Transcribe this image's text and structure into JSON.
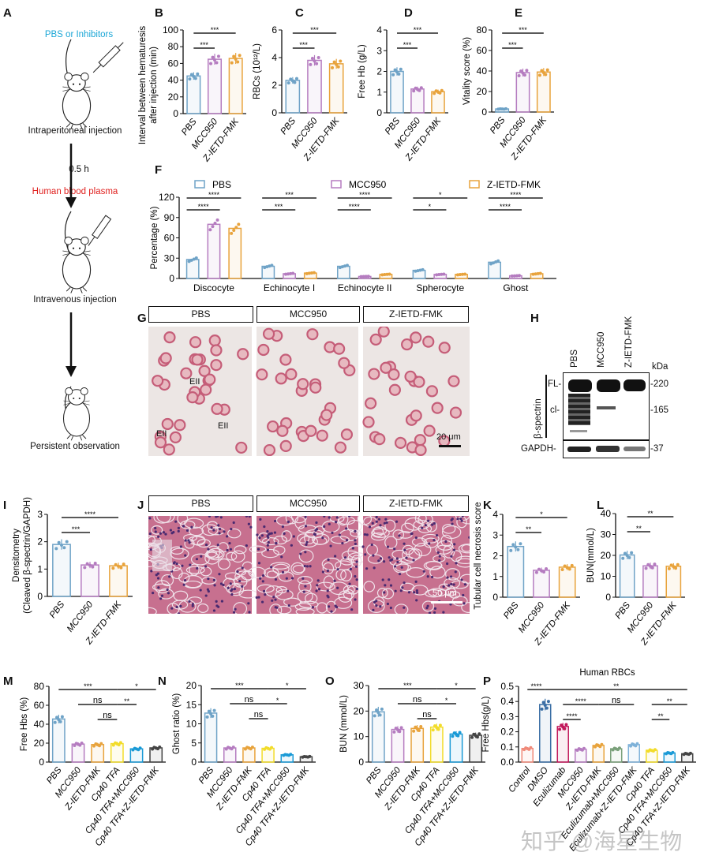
{
  "panel_letters": {
    "A": "A",
    "B": "B",
    "C": "C",
    "D": "D",
    "E": "E",
    "F": "F",
    "G": "G",
    "H": "H",
    "I": "I",
    "J": "J",
    "K": "K",
    "L": "L",
    "M": "M",
    "N": "N",
    "O": "O",
    "P": "P"
  },
  "schematic": {
    "step1_label": "PBS or Inhibitors",
    "step1_caption": "Intraperitoneal injection",
    "interval": "0.5 h",
    "step2_label": "Human blood plasma",
    "step2_caption": "Intravenous injection",
    "step3_caption": "Persistent observation",
    "colors": {
      "step1": "#1aa6d6",
      "step2": "#e0201e"
    }
  },
  "smear_panel": {
    "headers": [
      "PBS",
      "MCC950",
      "Z-IETD-FMK"
    ],
    "annotations": [
      "EII",
      "EII",
      "EII"
    ],
    "scale_bar": "20 μm"
  },
  "kidney_panel": {
    "headers": [
      "PBS",
      "MCC950",
      "Z-IETD-FMK"
    ],
    "scale_bar": "50 μm"
  },
  "western_blot": {
    "lanes": [
      "PBS",
      "MCC950",
      "Z-IETD-FMK"
    ],
    "unit": "kDa",
    "markers": [
      "-220",
      "-165",
      "-37"
    ],
    "band_labels": [
      "FL-",
      "cl-"
    ],
    "protein": "β-spectrin",
    "loading_control": "GAPDH-"
  },
  "watermark": "知乎 @海星生物",
  "chart_data": [
    {
      "id": "B",
      "type": "bar",
      "categories": [
        "PBS",
        "MCC950",
        "Z-IETD-FMK"
      ],
      "values": [
        45,
        65,
        66
      ],
      "ylim": [
        0,
        100
      ],
      "yticks": [
        0,
        20,
        40,
        60,
        80,
        100
      ],
      "ylabel": [
        "Interval between hematuresis",
        "after injection (min)"
      ],
      "colors": [
        "#6fa3c7",
        "#b57cc0",
        "#e8a33c"
      ],
      "annotations": [
        {
          "from": 0,
          "to": 1,
          "label": "***"
        },
        {
          "from": 0,
          "to": 2,
          "label": "***"
        }
      ]
    },
    {
      "id": "C",
      "type": "bar",
      "categories": [
        "PBS",
        "MCC950",
        "Z-IETD-FMK"
      ],
      "values": [
        2.35,
        3.8,
        3.55
      ],
      "ylim": [
        0,
        6
      ],
      "yticks": [
        0,
        2,
        4,
        6
      ],
      "ylabel": [
        "RBCs (10¹²/L)"
      ],
      "colors": [
        "#6fa3c7",
        "#b57cc0",
        "#e8a33c"
      ],
      "annotations": [
        {
          "from": 0,
          "to": 1,
          "label": "***"
        },
        {
          "from": 0,
          "to": 2,
          "label": "***"
        }
      ]
    },
    {
      "id": "D",
      "type": "bar",
      "categories": [
        "PBS",
        "MCC950",
        "Z-IETD-FMK"
      ],
      "values": [
        2.0,
        1.15,
        1.02
      ],
      "ylim": [
        0,
        4
      ],
      "yticks": [
        0,
        1,
        2,
        3,
        4
      ],
      "ylabel": [
        "Free Hb (g/L)"
      ],
      "colors": [
        "#6fa3c7",
        "#b57cc0",
        "#e8a33c"
      ],
      "annotations": [
        {
          "from": 0,
          "to": 1,
          "label": "***"
        },
        {
          "from": 0,
          "to": 2,
          "label": "***"
        }
      ]
    },
    {
      "id": "E",
      "type": "bar",
      "categories": [
        "PBS",
        "MCC950",
        "Z-IETD-FMK"
      ],
      "values": [
        3,
        38.5,
        39
      ],
      "ylim": [
        0,
        80
      ],
      "yticks": [
        0,
        20,
        40,
        60,
        80
      ],
      "ylabel": [
        "Vitality score (%)"
      ],
      "colors": [
        "#6fa3c7",
        "#b57cc0",
        "#e8a33c"
      ],
      "annotations": [
        {
          "from": 0,
          "to": 1,
          "label": "***"
        },
        {
          "from": 0,
          "to": 2,
          "label": "***"
        }
      ]
    },
    {
      "id": "F",
      "type": "grouped_bar",
      "categories": [
        "Discocyte",
        "Echinocyte I",
        "Echinocyte II",
        "Spherocyte",
        "Ghost"
      ],
      "series": [
        {
          "name": "PBS",
          "color": "#6fa3c7",
          "values": [
            28,
            18,
            18,
            12,
            24
          ]
        },
        {
          "name": "MCC950",
          "color": "#b57cc0",
          "values": [
            80,
            7,
            3,
            6,
            4
          ]
        },
        {
          "name": "Z-IETD-FMK",
          "color": "#e8a33c",
          "values": [
            74,
            8,
            6,
            6,
            7
          ]
        }
      ],
      "ylim": [
        0,
        120
      ],
      "yticks": [
        0,
        30,
        60,
        90,
        120
      ],
      "ylabel": [
        "Percentage (%)"
      ],
      "legend": "top",
      "annotations": [
        {
          "group": 0,
          "from": 0,
          "to": 1,
          "label": "****"
        },
        {
          "group": 0,
          "from": 0,
          "to": 2,
          "label": "****"
        },
        {
          "group": 1,
          "from": 0,
          "to": 1,
          "label": "***"
        },
        {
          "group": 1,
          "from": 0,
          "to": 2,
          "label": "***"
        },
        {
          "group": 2,
          "from": 0,
          "to": 1,
          "label": "****"
        },
        {
          "group": 2,
          "from": 0,
          "to": 2,
          "label": "****"
        },
        {
          "group": 3,
          "from": 0,
          "to": 1,
          "label": "*"
        },
        {
          "group": 3,
          "from": 0,
          "to": 2,
          "label": "*"
        },
        {
          "group": 4,
          "from": 0,
          "to": 1,
          "label": "****"
        },
        {
          "group": 4,
          "from": 0,
          "to": 2,
          "label": "****"
        }
      ]
    },
    {
      "id": "I",
      "type": "bar",
      "categories": [
        "PBS",
        "MCC950",
        "Z-IETD-FMK"
      ],
      "values": [
        1.9,
        1.15,
        1.12
      ],
      "ylim": [
        0,
        3
      ],
      "yticks": [
        0,
        1,
        2,
        3
      ],
      "ylabel": [
        "Densitometry",
        "(Cleaved β-spectrin/GAPDH)"
      ],
      "colors": [
        "#6fa3c7",
        "#b57cc0",
        "#e8a33c"
      ],
      "annotations": [
        {
          "from": 0,
          "to": 1,
          "label": "***"
        },
        {
          "from": 0,
          "to": 2,
          "label": "****"
        }
      ]
    },
    {
      "id": "K",
      "type": "bar",
      "categories": [
        "PBS",
        "MCC950",
        "Z-IETD-FMK"
      ],
      "values": [
        2.45,
        1.3,
        1.45
      ],
      "ylim": [
        0,
        4
      ],
      "yticks": [
        0,
        1,
        2,
        3,
        4
      ],
      "ylabel": [
        "Tubular cell necrosis score"
      ],
      "colors": [
        "#6fa3c7",
        "#b57cc0",
        "#e8a33c"
      ],
      "annotations": [
        {
          "from": 0,
          "to": 1,
          "label": "**"
        },
        {
          "from": 0,
          "to": 2,
          "label": "*"
        }
      ]
    },
    {
      "id": "L",
      "type": "bar",
      "categories": [
        "PBS",
        "MCC950",
        "Z-IETD-FMK"
      ],
      "values": [
        20.2,
        15,
        14.8
      ],
      "ylim": [
        0,
        40
      ],
      "yticks": [
        0,
        10,
        20,
        30,
        40
      ],
      "ylabel": [
        "BUN(mmol/L)"
      ],
      "colors": [
        "#6fa3c7",
        "#b57cc0",
        "#e8a33c"
      ],
      "annotations": [
        {
          "from": 0,
          "to": 1,
          "label": "**"
        },
        {
          "from": 0,
          "to": 2,
          "label": "**"
        }
      ]
    },
    {
      "id": "M",
      "type": "bar",
      "categories": [
        "PBS",
        "MCC950",
        "Z-IETD-FMK",
        "Cp40 TFA",
        "Cp40 TFA+MCC950",
        "Cp40 TFA+Z-IETD-FMK"
      ],
      "values": [
        45.5,
        19,
        18.5,
        19.5,
        14,
        15
      ],
      "ylim": [
        0,
        80
      ],
      "yticks": [
        0,
        20,
        40,
        60,
        80
      ],
      "ylabel": [
        "Free Hbs (%)"
      ],
      "colors": [
        "#6fa3c7",
        "#b57cc0",
        "#e8a33c",
        "#f2dc2a",
        "#1a9ad6",
        "#444444"
      ],
      "annotations": [
        {
          "from": 0,
          "to": 3,
          "label": "***"
        },
        {
          "from": 3,
          "to": 5,
          "label": "*"
        },
        {
          "from": 1,
          "to": 3,
          "label": "ns"
        },
        {
          "from": 3,
          "to": 4,
          "label": "**"
        },
        {
          "from": 2,
          "to": 3,
          "label": "ns"
        }
      ]
    },
    {
      "id": "N",
      "type": "bar",
      "categories": [
        "PBS",
        "MCC950",
        "Z-IETD-FMK",
        "Cp40 TFA",
        "Cp40 TFA+MCC950",
        "Cp40 TFA+Z-IETD-FMK"
      ],
      "values": [
        12.8,
        3.7,
        3.7,
        3.6,
        1.9,
        1.4
      ],
      "ylim": [
        0,
        20
      ],
      "yticks": [
        0,
        5,
        10,
        15,
        20
      ],
      "ylabel": [
        "Ghost ratio (%)"
      ],
      "colors": [
        "#6fa3c7",
        "#b57cc0",
        "#e8a33c",
        "#f2dc2a",
        "#1a9ad6",
        "#444444"
      ],
      "annotations": [
        {
          "from": 0,
          "to": 3,
          "label": "***"
        },
        {
          "from": 3,
          "to": 5,
          "label": "*"
        },
        {
          "from": 1,
          "to": 3,
          "label": "ns"
        },
        {
          "from": 3,
          "to": 4,
          "label": "*"
        },
        {
          "from": 2,
          "to": 3,
          "label": "ns"
        }
      ]
    },
    {
      "id": "O",
      "type": "bar",
      "categories": [
        "PBS",
        "MCC950",
        "Z-IETD-FMK",
        "Cp40 TFA",
        "Cp40 TFA+MCC950",
        "Cp40 TFA+Z-IETD-FMK"
      ],
      "values": [
        19.7,
        12.8,
        13.2,
        13.7,
        11,
        10.5
      ],
      "ylim": [
        0,
        30
      ],
      "yticks": [
        0,
        10,
        20,
        30
      ],
      "ylabel": [
        "BUN (mmol/L)"
      ],
      "colors": [
        "#6fa3c7",
        "#b57cc0",
        "#e8a33c",
        "#f2dc2a",
        "#1a9ad6",
        "#444444"
      ],
      "annotations": [
        {
          "from": 0,
          "to": 3,
          "label": "***"
        },
        {
          "from": 3,
          "to": 5,
          "label": "*"
        },
        {
          "from": 1,
          "to": 3,
          "label": "ns"
        },
        {
          "from": 3,
          "to": 4,
          "label": "*"
        },
        {
          "from": 2,
          "to": 3,
          "label": "ns"
        }
      ]
    },
    {
      "id": "P",
      "type": "bar",
      "title": "Human RBCs",
      "categories": [
        "Control",
        "DMSO",
        "Eculizumab",
        "MCC950",
        "Z-IETD-FMK",
        "Eculizumab+MCC950",
        "Eculizumab+Z-IETD-FMK",
        "Cp40 TFA",
        "Cp40 TFA+MCC950",
        "Cp40 TFA+Z-IETD-FMK"
      ],
      "values": [
        0.09,
        0.38,
        0.235,
        0.085,
        0.11,
        0.088,
        0.115,
        0.078,
        0.06,
        0.055
      ],
      "ylim": [
        0,
        0.5
      ],
      "yticks": [
        0.0,
        0.1,
        0.2,
        0.3,
        0.4,
        0.5
      ],
      "ylabel": [
        "Free Hbs(g/L)"
      ],
      "colors": [
        "#f08a7a",
        "#3a6ea5",
        "#c2185b",
        "#b57cc0",
        "#e8a33c",
        "#7aa07a",
        "#7fb2d9",
        "#f2dc2a",
        "#1a9ad6",
        "#444444"
      ],
      "annotations": [
        {
          "from": 0,
          "to": 1,
          "label": "****"
        },
        {
          "from": 1,
          "to": 9,
          "label": "**"
        },
        {
          "from": 2,
          "to": 4,
          "label": "****"
        },
        {
          "from": 4,
          "to": 6,
          "label": "ns"
        },
        {
          "from": 7,
          "to": 9,
          "label": "**"
        },
        {
          "from": 2,
          "to": 3,
          "label": "****"
        },
        {
          "from": 7,
          "to": 8,
          "label": "**"
        }
      ]
    }
  ]
}
